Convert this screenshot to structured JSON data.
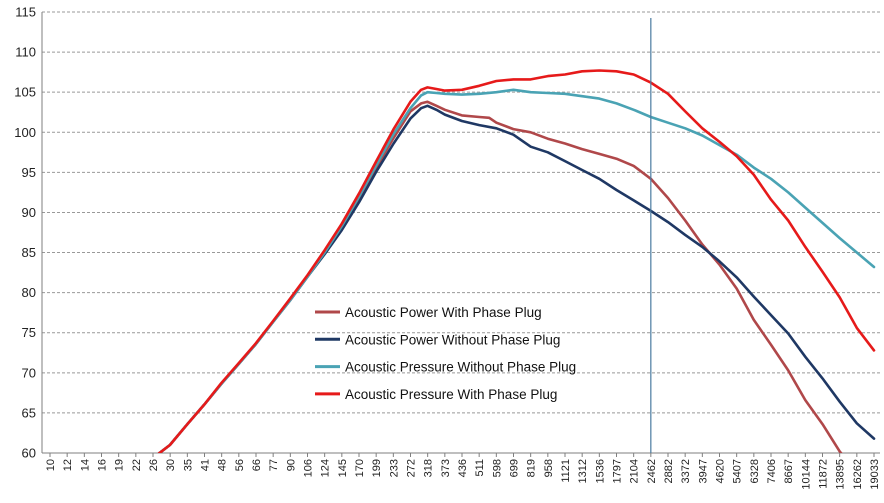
{
  "chart_data": {
    "type": "line",
    "title": "",
    "xlabel": "",
    "ylabel": "",
    "ylim": [
      60,
      115
    ],
    "y_ticks": [
      60,
      65,
      70,
      75,
      80,
      85,
      90,
      95,
      100,
      105,
      110,
      115
    ],
    "x_scale": "log",
    "x_tick_labels": [
      "10",
      "12",
      "14",
      "16",
      "19",
      "22",
      "26",
      "30",
      "35",
      "41",
      "48",
      "56",
      "66",
      "77",
      "90",
      "106",
      "124",
      "145",
      "170",
      "199",
      "233",
      "272",
      "318",
      "373",
      "436",
      "511",
      "598",
      "699",
      "819",
      "958",
      "1121",
      "1312",
      "1536",
      "1797",
      "2104",
      "2462",
      "2882",
      "3372",
      "3947",
      "4620",
      "5407",
      "6328",
      "7406",
      "8667",
      "10144",
      "11872",
      "13895",
      "16262",
      "19033"
    ],
    "grid": "horizontal dashed",
    "vertical_marker_x": 2462,
    "legend_position": "center-left",
    "colors": {
      "Acoustic Power With Phase Plug": "#b0484a",
      "Acoustic Power Without Phase Plug": "#1f3864",
      "Acoustic Pressure Without Phase Plug": "#4aa3b4",
      "Acoustic Pressure With Phase Plug": "#e61a1a",
      "grid": "#999999",
      "marker": "#4a7aa0"
    },
    "series": [
      {
        "name": "Acoustic Power With Phase Plug",
        "points": [
          [
            26,
            59.5
          ],
          [
            30,
            61
          ],
          [
            35,
            63.5
          ],
          [
            41,
            66
          ],
          [
            48,
            68.6
          ],
          [
            56,
            71
          ],
          [
            66,
            73.6
          ],
          [
            77,
            76.3
          ],
          [
            90,
            79
          ],
          [
            106,
            82
          ],
          [
            124,
            85
          ],
          [
            145,
            88.2
          ],
          [
            170,
            91.8
          ],
          [
            199,
            95.6
          ],
          [
            233,
            99.3
          ],
          [
            272,
            102.6
          ],
          [
            300,
            103.6
          ],
          [
            318,
            103.8
          ],
          [
            345,
            103.3
          ],
          [
            373,
            102.8
          ],
          [
            436,
            102.1
          ],
          [
            511,
            101.9
          ],
          [
            560,
            101.8
          ],
          [
            598,
            101.2
          ],
          [
            699,
            100.4
          ],
          [
            819,
            100
          ],
          [
            958,
            99.2
          ],
          [
            1121,
            98.6
          ],
          [
            1312,
            97.9
          ],
          [
            1536,
            97.3
          ],
          [
            1797,
            96.7
          ],
          [
            2104,
            95.8
          ],
          [
            2462,
            94.2
          ],
          [
            2882,
            91.8
          ],
          [
            3372,
            89
          ],
          [
            3947,
            86
          ],
          [
            4620,
            83.5
          ],
          [
            5407,
            80.5
          ],
          [
            6328,
            76.6
          ],
          [
            7406,
            73.5
          ],
          [
            8667,
            70.3
          ],
          [
            10144,
            66.6
          ],
          [
            11872,
            63.6
          ],
          [
            13895,
            60.2
          ],
          [
            14500,
            59.5
          ]
        ]
      },
      {
        "name": "Acoustic Power Without Phase Plug",
        "points": [
          [
            26,
            59.5
          ],
          [
            30,
            61
          ],
          [
            35,
            63.5
          ],
          [
            41,
            66
          ],
          [
            48,
            68.6
          ],
          [
            56,
            71
          ],
          [
            66,
            73.6
          ],
          [
            77,
            76.3
          ],
          [
            90,
            79
          ],
          [
            106,
            82
          ],
          [
            124,
            84.8
          ],
          [
            145,
            87.8
          ],
          [
            170,
            91.3
          ],
          [
            199,
            95.1
          ],
          [
            233,
            98.6
          ],
          [
            272,
            101.7
          ],
          [
            300,
            103
          ],
          [
            318,
            103.3
          ],
          [
            345,
            102.8
          ],
          [
            373,
            102.2
          ],
          [
            436,
            101.4
          ],
          [
            511,
            100.9
          ],
          [
            598,
            100.5
          ],
          [
            699,
            99.7
          ],
          [
            819,
            98.2
          ],
          [
            958,
            97.5
          ],
          [
            1121,
            96.4
          ],
          [
            1312,
            95.3
          ],
          [
            1536,
            94.2
          ],
          [
            1797,
            92.8
          ],
          [
            2104,
            91.5
          ],
          [
            2462,
            90.2
          ],
          [
            2882,
            88.8
          ],
          [
            3372,
            87.2
          ],
          [
            3947,
            85.7
          ],
          [
            4620,
            83.9
          ],
          [
            5407,
            81.9
          ],
          [
            6328,
            79.5
          ],
          [
            7406,
            77.2
          ],
          [
            8667,
            74.9
          ],
          [
            10144,
            72
          ],
          [
            11872,
            69.3
          ],
          [
            13895,
            66.4
          ],
          [
            16262,
            63.7
          ],
          [
            19033,
            61.8
          ]
        ]
      },
      {
        "name": "Acoustic Pressure Without Phase Plug",
        "points": [
          [
            26,
            59.5
          ],
          [
            30,
            61
          ],
          [
            35,
            63.5
          ],
          [
            41,
            66
          ],
          [
            48,
            68.6
          ],
          [
            56,
            71
          ],
          [
            66,
            73.6
          ],
          [
            77,
            76.3
          ],
          [
            90,
            79
          ],
          [
            106,
            82
          ],
          [
            124,
            85
          ],
          [
            145,
            88.3
          ],
          [
            170,
            92
          ],
          [
            199,
            95.9
          ],
          [
            233,
            99.8
          ],
          [
            272,
            103
          ],
          [
            300,
            104.6
          ],
          [
            318,
            105
          ],
          [
            345,
            104.9
          ],
          [
            373,
            104.8
          ],
          [
            436,
            104.7
          ],
          [
            511,
            104.8
          ],
          [
            598,
            105
          ],
          [
            699,
            105.3
          ],
          [
            819,
            105
          ],
          [
            958,
            104.9
          ],
          [
            1121,
            104.8
          ],
          [
            1312,
            104.5
          ],
          [
            1536,
            104.2
          ],
          [
            1797,
            103.6
          ],
          [
            2104,
            102.8
          ],
          [
            2462,
            101.9
          ],
          [
            2882,
            101.2
          ],
          [
            3372,
            100.5
          ],
          [
            3947,
            99.6
          ],
          [
            4620,
            98.4
          ],
          [
            5407,
            97.2
          ],
          [
            6328,
            95.6
          ],
          [
            7406,
            94.2
          ],
          [
            8667,
            92.5
          ],
          [
            10144,
            90.6
          ],
          [
            11872,
            88.7
          ],
          [
            13895,
            86.8
          ],
          [
            16262,
            85
          ],
          [
            19033,
            83.2
          ]
        ]
      },
      {
        "name": "Acoustic Pressure With Phase Plug",
        "points": [
          [
            26,
            59.5
          ],
          [
            30,
            61
          ],
          [
            35,
            63.5
          ],
          [
            41,
            66
          ],
          [
            48,
            68.7
          ],
          [
            56,
            71.1
          ],
          [
            66,
            73.7
          ],
          [
            77,
            76.4
          ],
          [
            90,
            79.2
          ],
          [
            106,
            82.2
          ],
          [
            124,
            85.3
          ],
          [
            145,
            88.6
          ],
          [
            170,
            92.4
          ],
          [
            199,
            96.4
          ],
          [
            233,
            100.4
          ],
          [
            272,
            103.8
          ],
          [
            300,
            105.3
          ],
          [
            318,
            105.6
          ],
          [
            345,
            105.4
          ],
          [
            373,
            105.2
          ],
          [
            436,
            105.3
          ],
          [
            511,
            105.8
          ],
          [
            598,
            106.4
          ],
          [
            699,
            106.6
          ],
          [
            819,
            106.6
          ],
          [
            958,
            107
          ],
          [
            1121,
            107.2
          ],
          [
            1312,
            107.6
          ],
          [
            1536,
            107.7
          ],
          [
            1797,
            107.6
          ],
          [
            2104,
            107.2
          ],
          [
            2462,
            106.2
          ],
          [
            2882,
            104.8
          ],
          [
            3372,
            102.6
          ],
          [
            3947,
            100.5
          ],
          [
            4620,
            98.8
          ],
          [
            5407,
            97
          ],
          [
            6328,
            94.7
          ],
          [
            7406,
            91.6
          ],
          [
            8667,
            89
          ],
          [
            10144,
            85.7
          ],
          [
            11872,
            82.6
          ],
          [
            13895,
            79.4
          ],
          [
            16262,
            75.6
          ],
          [
            19033,
            72.8
          ]
        ]
      }
    ]
  }
}
